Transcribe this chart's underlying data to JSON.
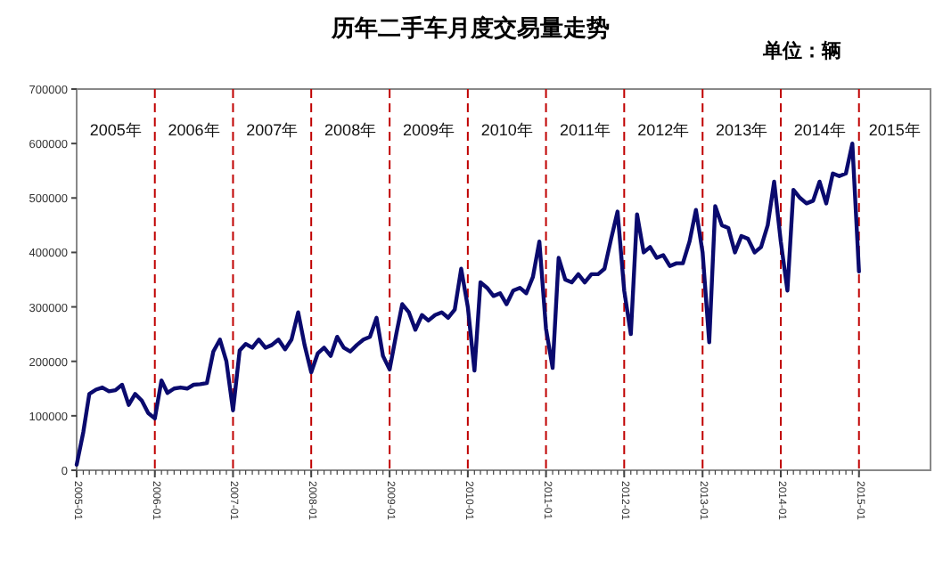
{
  "chart_data": {
    "type": "line",
    "title": "历年二手车月度交易量走势",
    "subtitle": "单位：辆",
    "x": [
      "2005-01",
      "2005-02",
      "2005-03",
      "2005-04",
      "2005-05",
      "2005-06",
      "2005-07",
      "2005-08",
      "2005-09",
      "2005-10",
      "2005-11",
      "2005-12",
      "2006-01",
      "2006-02",
      "2006-03",
      "2006-04",
      "2006-05",
      "2006-06",
      "2006-07",
      "2006-08",
      "2006-09",
      "2006-10",
      "2006-11",
      "2006-12",
      "2007-01",
      "2007-02",
      "2007-03",
      "2007-04",
      "2007-05",
      "2007-06",
      "2007-07",
      "2007-08",
      "2007-09",
      "2007-10",
      "2007-11",
      "2007-12",
      "2008-01",
      "2008-02",
      "2008-03",
      "2008-04",
      "2008-05",
      "2008-06",
      "2008-07",
      "2008-08",
      "2008-09",
      "2008-10",
      "2008-11",
      "2008-12",
      "2009-01",
      "2009-02",
      "2009-03",
      "2009-04",
      "2009-05",
      "2009-06",
      "2009-07",
      "2009-08",
      "2009-09",
      "2009-10",
      "2009-11",
      "2009-12",
      "2010-01",
      "2010-02",
      "2010-03",
      "2010-04",
      "2010-05",
      "2010-06",
      "2010-07",
      "2010-08",
      "2010-09",
      "2010-10",
      "2010-11",
      "2010-12",
      "2011-01",
      "2011-02",
      "2011-03",
      "2011-04",
      "2011-05",
      "2011-06",
      "2011-07",
      "2011-08",
      "2011-09",
      "2011-10",
      "2011-11",
      "2011-12",
      "2012-01",
      "2012-02",
      "2012-03",
      "2012-04",
      "2012-05",
      "2012-06",
      "2012-07",
      "2012-08",
      "2012-09",
      "2012-10",
      "2012-11",
      "2012-12",
      "2013-01",
      "2013-02",
      "2013-03",
      "2013-04",
      "2013-05",
      "2013-06",
      "2013-07",
      "2013-08",
      "2013-09",
      "2013-10",
      "2013-11",
      "2013-12",
      "2014-01",
      "2014-02",
      "2014-03",
      "2014-04",
      "2014-05",
      "2014-06",
      "2014-07",
      "2014-08",
      "2014-09",
      "2014-10",
      "2014-11",
      "2014-12",
      "2015-01"
    ],
    "series": [
      {
        "color": "#0a0a6e",
        "values": [
          10000,
          70000,
          140000,
          148000,
          152000,
          145000,
          147000,
          157000,
          120000,
          140000,
          128000,
          105000,
          95000,
          165000,
          142000,
          150000,
          152000,
          150000,
          157000,
          158000,
          160000,
          218000,
          240000,
          200000,
          110000,
          220000,
          232000,
          225000,
          240000,
          225000,
          230000,
          240000,
          222000,
          240000,
          290000,
          230000,
          180000,
          215000,
          225000,
          210000,
          245000,
          225000,
          218000,
          230000,
          240000,
          245000,
          280000,
          210000,
          185000,
          250000,
          305000,
          290000,
          258000,
          285000,
          275000,
          285000,
          290000,
          280000,
          295000,
          370000,
          300000,
          183000,
          345000,
          335000,
          320000,
          325000,
          305000,
          330000,
          335000,
          325000,
          355000,
          420000,
          260000,
          188000,
          390000,
          350000,
          345000,
          360000,
          345000,
          360000,
          360000,
          370000,
          425000,
          475000,
          330000,
          250000,
          470000,
          400000,
          410000,
          390000,
          395000,
          375000,
          380000,
          380000,
          420000,
          478000,
          400000,
          235000,
          485000,
          450000,
          445000,
          400000,
          430000,
          425000,
          400000,
          410000,
          450000,
          530000,
          420000,
          330000,
          515000,
          500000,
          490000,
          495000,
          530000,
          490000,
          545000,
          540000,
          545000,
          600000,
          365000
        ]
      }
    ],
    "xlim": [
      "2005-01",
      "2015-12"
    ],
    "ylim": [
      0,
      700000
    ],
    "yticks": [
      0,
      100000,
      200000,
      300000,
      400000,
      500000,
      600000,
      700000
    ],
    "xticks": [
      "2005-01",
      "2006-01",
      "2007-01",
      "2008-01",
      "2009-01",
      "2010-01",
      "2011-01",
      "2012-01",
      "2013-01",
      "2014-01",
      "2015-01"
    ],
    "grid": false,
    "marker": "none",
    "line_style": "solid",
    "ref_lines": [
      {
        "axis": "x",
        "value": "2006-01",
        "color": "#c00000",
        "line_style": "dashed"
      },
      {
        "axis": "x",
        "value": "2007-01",
        "color": "#c00000",
        "line_style": "dashed"
      },
      {
        "axis": "x",
        "value": "2008-01",
        "color": "#c00000",
        "line_style": "dashed"
      },
      {
        "axis": "x",
        "value": "2009-01",
        "color": "#c00000",
        "line_style": "dashed"
      },
      {
        "axis": "x",
        "value": "2010-01",
        "color": "#c00000",
        "line_style": "dashed"
      },
      {
        "axis": "x",
        "value": "2011-01",
        "color": "#c00000",
        "line_style": "dashed"
      },
      {
        "axis": "x",
        "value": "2012-01",
        "color": "#c00000",
        "line_style": "dashed"
      },
      {
        "axis": "x",
        "value": "2013-01",
        "color": "#c00000",
        "line_style": "dashed"
      },
      {
        "axis": "x",
        "value": "2014-01",
        "color": "#c00000",
        "line_style": "dashed"
      },
      {
        "axis": "x",
        "value": "2015-01",
        "color": "#c00000",
        "line_style": "dashed"
      }
    ],
    "annotations": [
      "2005年",
      "2006年",
      "2007年",
      "2008年",
      "2009年",
      "2010年",
      "2011年",
      "2012年",
      "2013年",
      "2014年",
      "2015年"
    ]
  }
}
